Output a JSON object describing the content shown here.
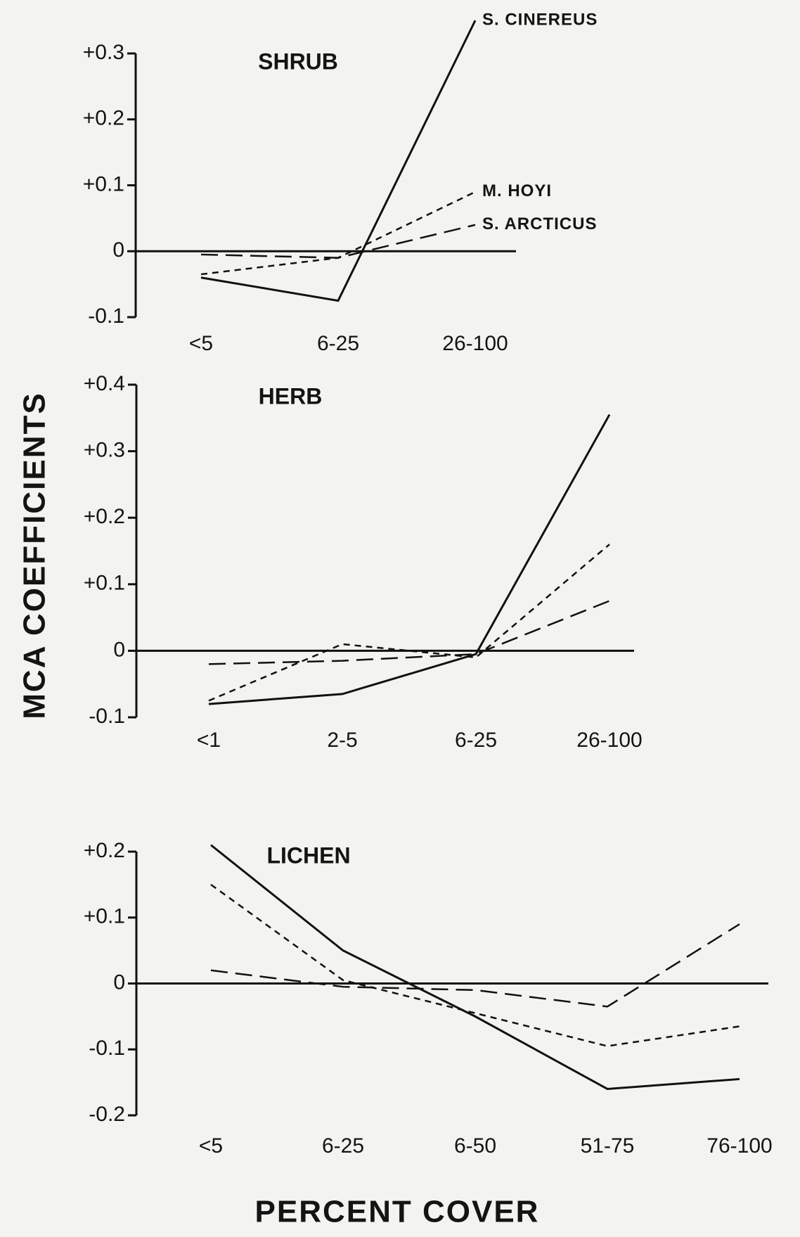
{
  "ylabel": "MCA COEFFICIENTS",
  "xlabel": "PERCENT COVER",
  "chart_data": [
    {
      "type": "line",
      "title": "SHRUB",
      "categories": [
        "<5",
        "6-25",
        "26-100"
      ],
      "series": [
        {
          "name": "S. CINEREUS",
          "color": "#111111",
          "dash": "solid",
          "values": [
            -0.04,
            -0.075,
            0.35
          ]
        },
        {
          "name": "M. HOYI",
          "color": "#111111",
          "dash": "short",
          "values": [
            -0.035,
            -0.01,
            0.09
          ]
        },
        {
          "name": "S. ARCTICUS",
          "color": "#111111",
          "dash": "long",
          "values": [
            -0.005,
            -0.01,
            0.04
          ]
        }
      ],
      "ylim": [
        -0.1,
        0.3
      ],
      "yticks": [
        {
          "value": 0.3,
          "label": "+0.3"
        },
        {
          "value": 0.2,
          "label": "+0.2"
        },
        {
          "value": 0.1,
          "label": "+0.1"
        },
        0,
        {
          "value": -0.1,
          "label": "-0.1"
        }
      ]
    },
    {
      "type": "line",
      "title": "HERB",
      "categories": [
        "<1",
        "2-5",
        "6-25",
        "26-100"
      ],
      "series": [
        {
          "color": "#111111",
          "dash": "solid",
          "values": [
            -0.08,
            -0.065,
            -0.005,
            0.355
          ]
        },
        {
          "color": "#111111",
          "dash": "short",
          "values": [
            -0.075,
            0.01,
            -0.01,
            0.16
          ]
        },
        {
          "color": "#111111",
          "dash": "long",
          "values": [
            -0.02,
            -0.015,
            -0.005,
            0.075
          ]
        }
      ],
      "ylim": [
        -0.1,
        0.4
      ],
      "yticks": [
        {
          "value": 0.4,
          "label": "+0.4"
        },
        {
          "value": 0.3,
          "label": "+0.3"
        },
        {
          "value": 0.2,
          "label": "+0.2"
        },
        {
          "value": 0.1,
          "label": "+0.1"
        },
        0,
        {
          "value": -0.1,
          "label": "-0.1"
        }
      ]
    },
    {
      "type": "line",
      "title": "LICHEN",
      "categories": [
        "<5",
        "6-25",
        "6-50",
        "51-75",
        "76-100"
      ],
      "series": [
        {
          "color": "#111111",
          "dash": "solid",
          "values": [
            0.21,
            0.05,
            -0.05,
            -0.16,
            -0.145
          ]
        },
        {
          "color": "#111111",
          "dash": "short",
          "values": [
            0.15,
            0.005,
            -0.045,
            -0.095,
            -0.065
          ]
        },
        {
          "color": "#111111",
          "dash": "long",
          "values": [
            0.02,
            -0.005,
            -0.01,
            -0.035,
            0.09
          ]
        }
      ],
      "ylim": [
        -0.2,
        0.2
      ],
      "yticks": [
        {
          "value": 0.2,
          "label": "+0.2"
        },
        {
          "value": 0.1,
          "label": "+0.1"
        },
        0,
        {
          "value": -0.1,
          "label": "-0.1"
        },
        {
          "value": -0.2,
          "label": "-0.2"
        }
      ]
    }
  ]
}
